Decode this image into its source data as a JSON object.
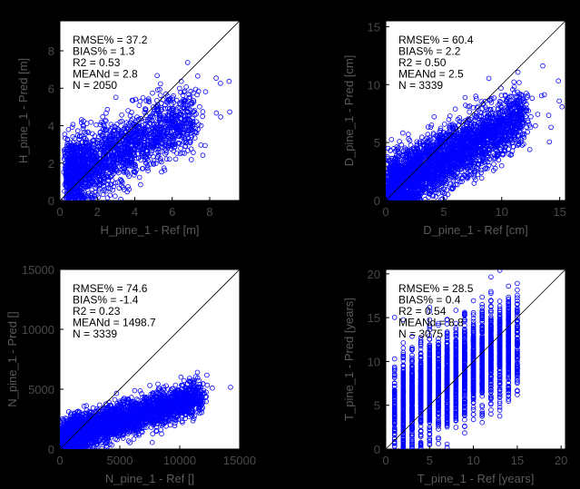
{
  "chart_data": [
    {
      "type": "scatter",
      "xlabel": "H_pine_1 - Ref [m]",
      "ylabel": "H_pine_1 - Pred [m]",
      "xlim": [
        0,
        9.6
      ],
      "ylim": [
        0,
        9.6
      ],
      "xticks": [
        "0",
        "2",
        "4",
        "6",
        "8"
      ],
      "yticks": [
        "0",
        "2",
        "4",
        "6",
        "8"
      ],
      "xtick_values": [
        0,
        2,
        4,
        6,
        8
      ],
      "ytick_values": [
        0,
        2,
        4,
        6,
        8
      ],
      "one_to_one_line": true,
      "stats": [
        "RMSE% = 37.2",
        "BIAS% = 1.3",
        "R2 = 0.53",
        "MEANd = 2.8",
        "N = 2050"
      ],
      "point_color": "#0000ff",
      "points_note": "dense cloud",
      "sample": {
        "n": 2050,
        "xmin": 0.2,
        "xmax": 9.2,
        "slope": 0.45,
        "intercept": 1.2,
        "noise": 0.9,
        "xmode": 2.5
      }
    },
    {
      "type": "scatter",
      "xlabel": "D_pine_1 - Ref [cm]",
      "ylabel": "D_pine_1 - Pred [cm]",
      "xlim": [
        0,
        15.5
      ],
      "ylim": [
        0,
        15.5
      ],
      "xticks": [
        "0",
        "5",
        "10",
        "15"
      ],
      "yticks": [
        "0",
        "5",
        "10",
        "15"
      ],
      "xtick_values": [
        0,
        5,
        10,
        15
      ],
      "ytick_values": [
        0,
        5,
        10,
        15
      ],
      "one_to_one_line": true,
      "stats": [
        "RMSE% = 60.4",
        "BIAS% = 2.2",
        "R2 = 0.50",
        "MEANd = 2.5",
        "N = 3339"
      ],
      "point_color": "#0000ff",
      "sample": {
        "n": 3339,
        "xmin": 0.0,
        "xmax": 15.3,
        "slope": 0.55,
        "intercept": 0.8,
        "noise": 1.3,
        "xmode": 2.0
      }
    },
    {
      "type": "scatter",
      "xlabel": "N_pine_1 - Ref []",
      "ylabel": "N_pine_1 - Pred []",
      "xlim": [
        0,
        15000
      ],
      "ylim": [
        0,
        15000
      ],
      "xticks": [
        "0",
        "5000",
        "10000",
        "15000"
      ],
      "yticks": [
        "0",
        "5000",
        "10000",
        "15000"
      ],
      "xtick_values": [
        0,
        5000,
        10000,
        15000
      ],
      "ytick_values": [
        0,
        5000,
        10000,
        15000
      ],
      "one_to_one_line": true,
      "stats": [
        "RMSE% = 74.6",
        "BIAS% = -1.4",
        "R2 = 0.23",
        "MEANd = 1498.7",
        "N = 3339"
      ],
      "point_color": "#0000ff",
      "sample": {
        "n": 3339,
        "xmin": 0,
        "xmax": 15000,
        "slope": 0.3,
        "intercept": 900,
        "noise": 700,
        "xmode": 1500
      }
    },
    {
      "type": "scatter",
      "xlabel": "T_pine_1 - Ref [years]",
      "ylabel": "T_pine_1 - Pred [years]",
      "xlim": [
        0,
        20.5
      ],
      "ylim": [
        0,
        20.5
      ],
      "xticks": [
        "0",
        "5",
        "10",
        "15",
        "20"
      ],
      "yticks": [
        "0",
        "5",
        "10",
        "15",
        "20"
      ],
      "xtick_values": [
        0,
        5,
        10,
        15,
        20
      ],
      "ytick_values": [
        0,
        5,
        10,
        15,
        20
      ],
      "one_to_one_line": true,
      "stats": [
        "RMSE% = 28.5",
        "BIAS% = 0.4",
        "R2 = 0.54",
        "MEANd = 8.8",
        "N = 3075"
      ],
      "point_color": "#0000ff",
      "sample": {
        "n": 3075,
        "xmin": 1,
        "xmax": 15,
        "slope": 0.55,
        "intercept": 4.3,
        "noise": 2.7,
        "xmode": 8,
        "discrete_x": true
      }
    }
  ]
}
